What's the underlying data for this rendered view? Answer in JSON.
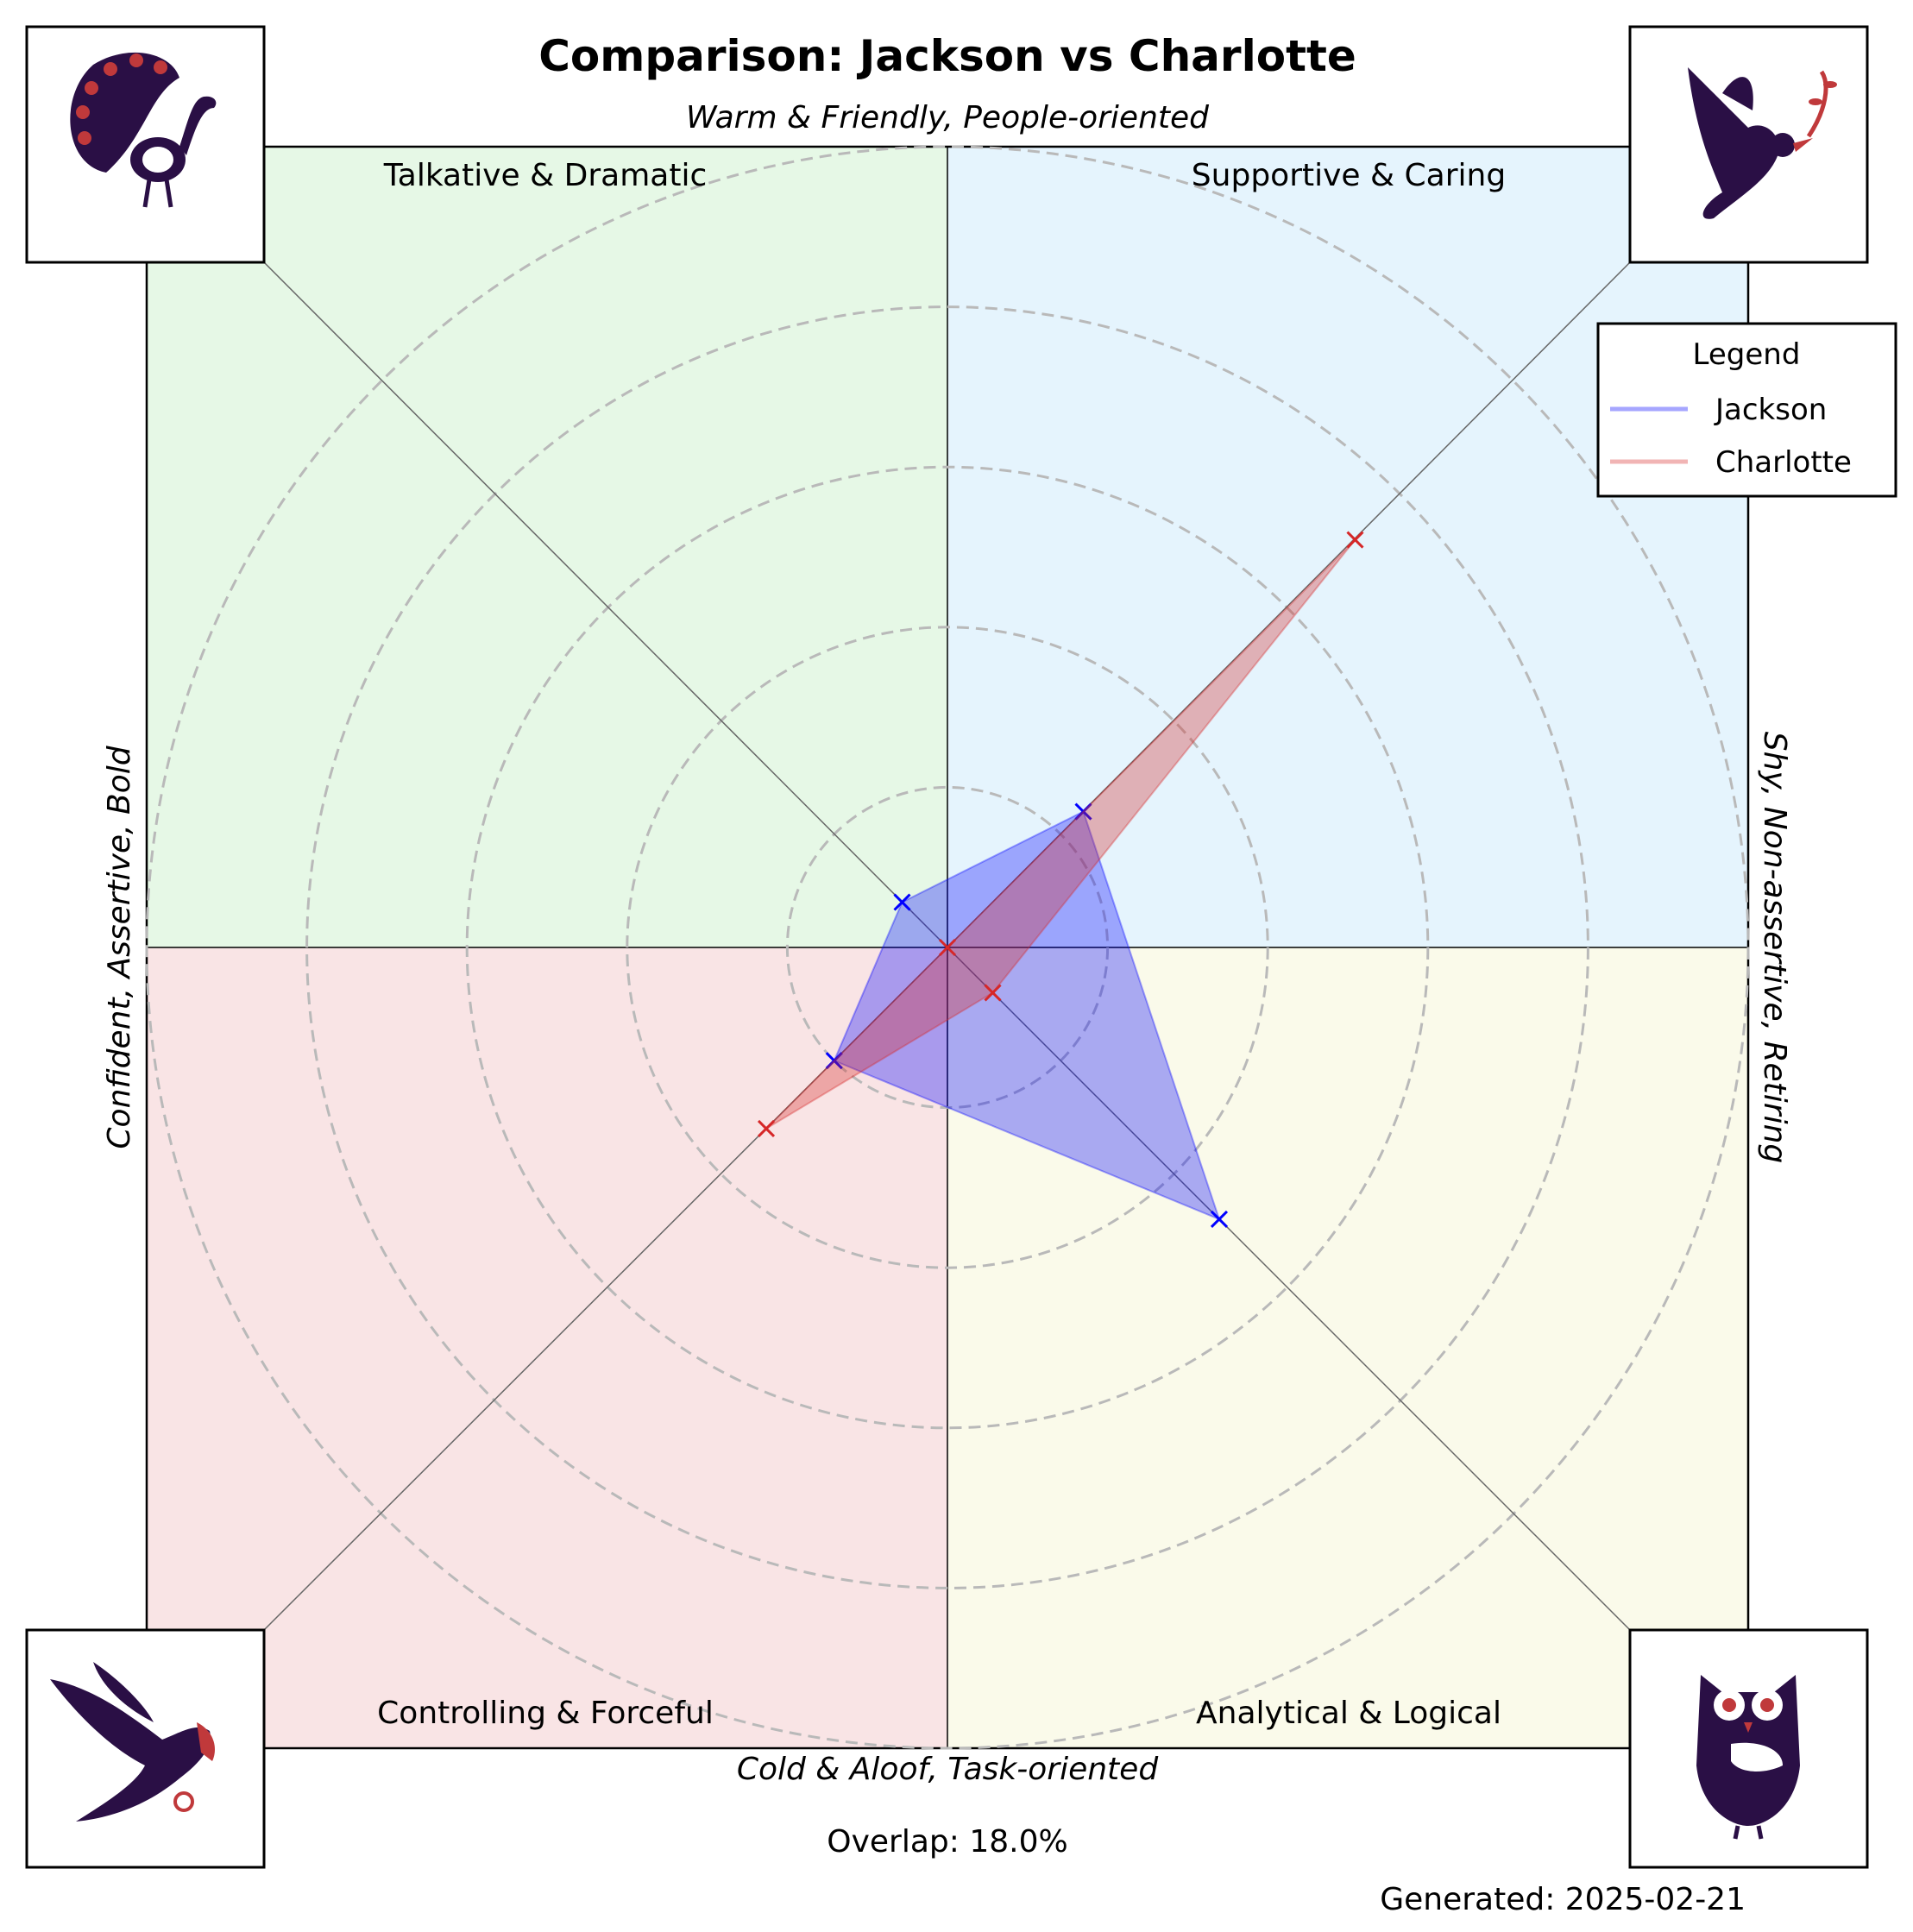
{
  "chart_data": {
    "type": "radar",
    "title": "Comparison: Jackson vs Charlotte",
    "axis_labels": {
      "top": "Warm & Friendly, People-oriented",
      "bottom": "Cold & Aloof, Task-oriented",
      "left": "Confident, Assertive, Bold",
      "right": "Shy, Non-assertive, Retiring"
    },
    "quadrants": [
      {
        "label": "Talkative & Dramatic",
        "color": "#e6f8e6",
        "animal": "peacock-icon"
      },
      {
        "label": "Supportive & Caring",
        "color": "#e5f4fd",
        "animal": "dove-icon"
      },
      {
        "label": "Controlling & Forceful",
        "color": "#f9e4e5",
        "animal": "eagle-icon"
      },
      {
        "label": "Analytical & Logical",
        "color": "#fafaea",
        "animal": "owl-icon"
      }
    ],
    "spokes": [
      "Talkative & Dramatic",
      "Supportive & Caring",
      "Analytical & Logical",
      "Controlling & Forceful"
    ],
    "rlim": [
      0,
      5
    ],
    "grid_rings": [
      1,
      2,
      3,
      4,
      5
    ],
    "series": [
      {
        "name": "Jackson",
        "color": "#0000ff",
        "values": [
          0.4,
          1.2,
          2.4,
          1.0
        ]
      },
      {
        "name": "Charlotte",
        "color": "#d62728",
        "values": [
          0.0,
          3.6,
          0.4,
          1.6
        ]
      }
    ],
    "legend": {
      "title": "Legend",
      "position": "top-right"
    },
    "overlap_text": "Overlap: 18.0%",
    "generated_text": "Generated: 2025-02-21"
  }
}
